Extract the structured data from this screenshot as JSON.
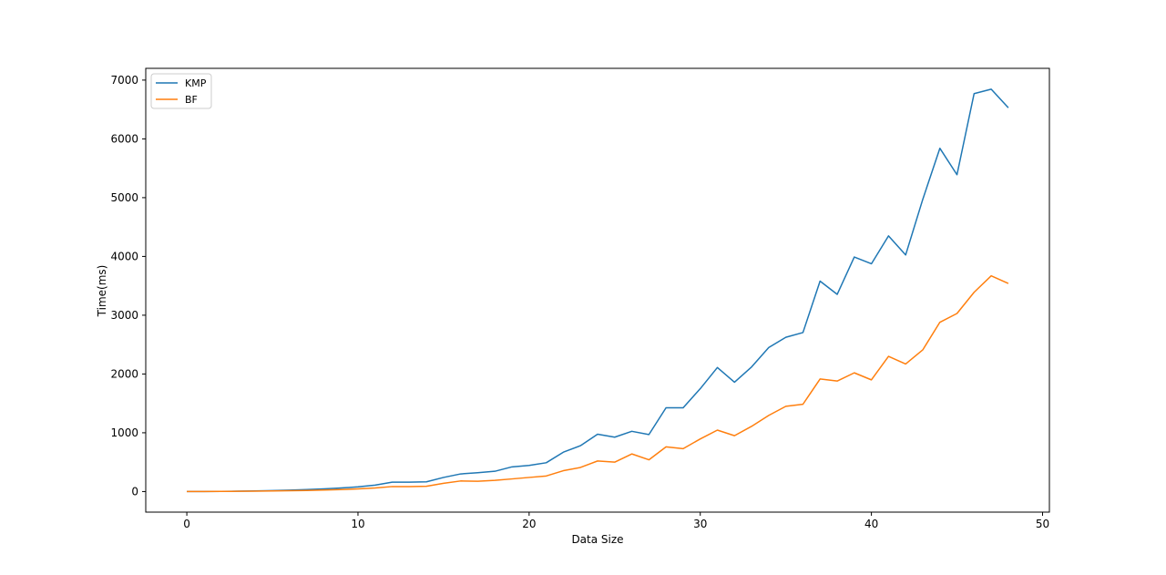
{
  "chart_data": {
    "type": "line",
    "title": "",
    "xlabel": "Data Size",
    "ylabel": "Time(ms)",
    "xlim": [
      -2.4,
      50.4
    ],
    "ylim": [
      -350,
      7200
    ],
    "xticks": [
      0,
      10,
      20,
      30,
      40,
      50
    ],
    "yticks": [
      0,
      1000,
      2000,
      3000,
      4000,
      5000,
      6000,
      7000
    ],
    "grid": false,
    "legend": "top-left",
    "x": [
      0,
      1,
      2,
      3,
      4,
      5,
      6,
      7,
      8,
      9,
      10,
      11,
      12,
      13,
      14,
      15,
      16,
      17,
      18,
      19,
      20,
      21,
      22,
      23,
      24,
      25,
      26,
      27,
      28,
      29,
      30,
      31,
      32,
      33,
      34,
      35,
      36,
      37,
      38,
      39,
      40,
      41,
      42,
      43,
      44,
      45,
      46,
      47,
      48
    ],
    "series": [
      {
        "name": "KMP",
        "color": "#1f77b4",
        "values": [
          0,
          1,
          3,
          6,
          11,
          17,
          24,
          33,
          45,
          60,
          80,
          110,
          160,
          160,
          165,
          240,
          300,
          320,
          345,
          420,
          445,
          490,
          670,
          780,
          975,
          925,
          1025,
          970,
          1425,
          1425,
          1750,
          2110,
          1860,
          2120,
          2450,
          2625,
          2705,
          3580,
          3355,
          3990,
          3875,
          4350,
          4025,
          4970,
          5840,
          5390,
          6770,
          6845,
          6530
        ]
      },
      {
        "name": "BF",
        "color": "#ff7f0e",
        "values": [
          0,
          1,
          2,
          4,
          7,
          10,
          14,
          19,
          25,
          33,
          45,
          60,
          85,
          85,
          90,
          140,
          180,
          175,
          190,
          215,
          240,
          265,
          355,
          410,
          520,
          500,
          640,
          540,
          760,
          730,
          895,
          1045,
          950,
          1110,
          1295,
          1450,
          1485,
          1915,
          1880,
          2020,
          1900,
          2300,
          2170,
          2410,
          2880,
          3030,
          3390,
          3670,
          3540
        ]
      }
    ]
  }
}
